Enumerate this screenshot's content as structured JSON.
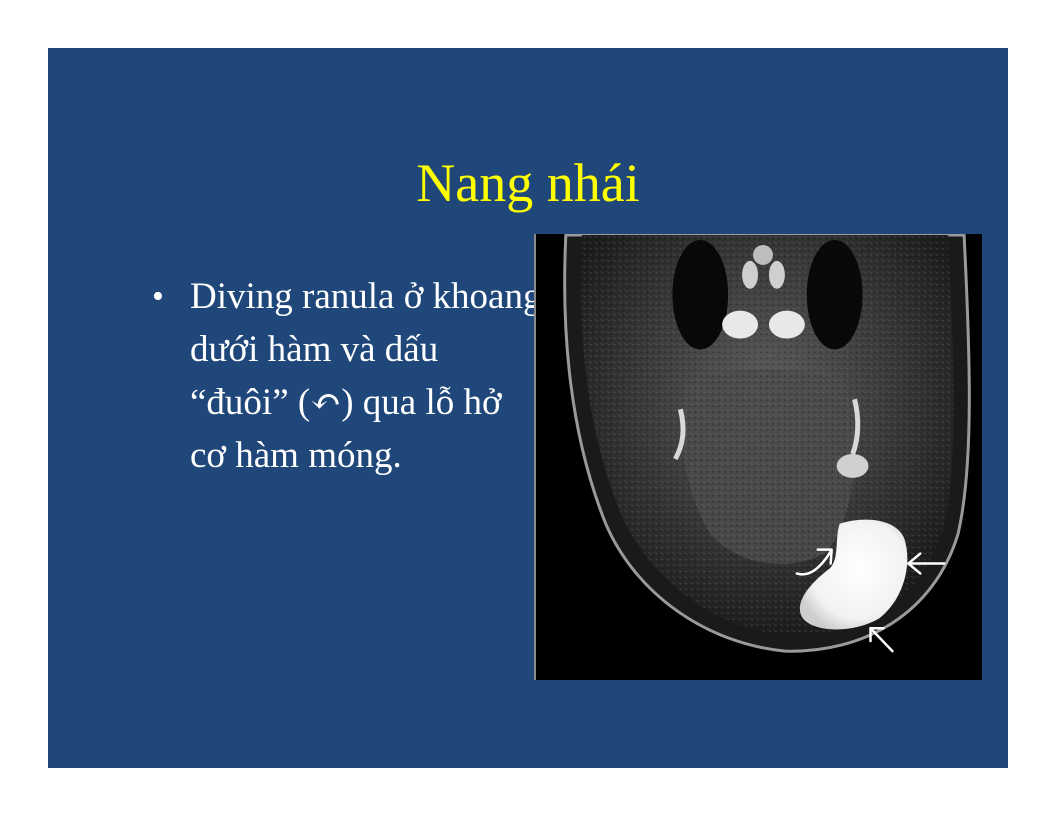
{
  "slide": {
    "title": "Nang nhái",
    "bullets": [
      {
        "marker": "•",
        "text": "Diving ranula ở khoang dưới hàm và dấu “đuôi” (↶) qua lỗ hở cơ hàm móng."
      }
    ]
  },
  "colors": {
    "background": "#1f477a",
    "title": "#ffff00",
    "body_text": "#ffffff"
  },
  "figure": {
    "kind": "grayscale MRI coronal image with arrows",
    "icons": [
      "curved-arrow-icon",
      "arrow-left-icon",
      "arrow-up-left-icon"
    ]
  }
}
